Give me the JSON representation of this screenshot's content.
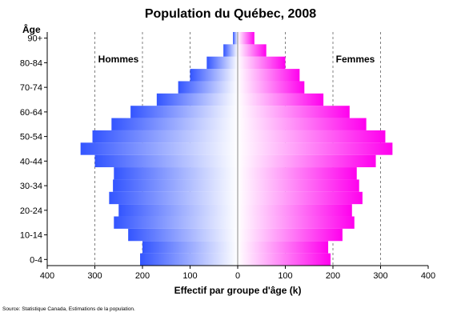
{
  "chart_data": {
    "type": "bar",
    "title": "Population du Québec, 2008",
    "ylabel": "Âge",
    "xlabel": "Effectif par groupe d'âge (k)",
    "source": "Source: Statistique Canada, Estimations de la population.",
    "orientation": "horizontal-pyramid",
    "xlim": [
      -400,
      400
    ],
    "x_ticks": [
      400,
      300,
      200,
      100,
      0,
      100,
      200,
      300,
      400
    ],
    "grid": true,
    "categories": [
      "0-4",
      "5-9",
      "10-14",
      "15-19",
      "20-24",
      "25-29",
      "30-34",
      "35-39",
      "40-44",
      "45-49",
      "50-54",
      "55-59",
      "60-64",
      "65-69",
      "70-74",
      "75-79",
      "80-84",
      "85-89",
      "90+"
    ],
    "y_tick_labels": [
      "0-4",
      "10-14",
      "20-24",
      "30-34",
      "40-44",
      "50-54",
      "60-64",
      "70-74",
      "80-84",
      "90+"
    ],
    "series": [
      {
        "name": "Hommes",
        "side": "left",
        "color": "#3355ff",
        "values": [
          205,
          200,
          230,
          260,
          250,
          270,
          262,
          260,
          300,
          330,
          305,
          265,
          225,
          170,
          125,
          100,
          65,
          30,
          10
        ]
      },
      {
        "name": "Femmes",
        "side": "right",
        "color": "#ff00ee",
        "values": [
          195,
          190,
          220,
          245,
          240,
          262,
          255,
          250,
          290,
          325,
          310,
          270,
          235,
          180,
          140,
          130,
          100,
          60,
          35
        ]
      }
    ]
  }
}
